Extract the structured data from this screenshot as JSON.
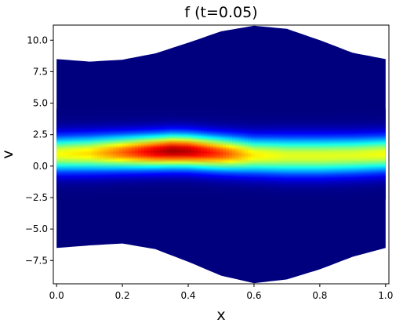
{
  "chart_data": {
    "type": "heatmap",
    "title": "f (t=0.05)",
    "xlabel": "x",
    "ylabel": "v",
    "xlim": [
      -0.01,
      1.01
    ],
    "ylim": [
      -9.35,
      11.2
    ],
    "x_ticks": [
      0.0,
      0.2,
      0.4,
      0.6,
      0.8,
      1.0
    ],
    "x_tick_labels": [
      "0.0",
      "0.2",
      "0.4",
      "0.6",
      "0.8",
      "1.0"
    ],
    "y_ticks": [
      -7.5,
      -5.0,
      -2.5,
      0.0,
      2.5,
      5.0,
      7.5,
      10.0
    ],
    "y_tick_labels": [
      "−7.5",
      "−5.0",
      "−2.5",
      "0.0",
      "2.5",
      "5.0",
      "7.5",
      "10.0"
    ],
    "colormap": "jet",
    "background_color": "#00007f",
    "grid": false,
    "domain_boundary": {
      "x": [
        0.0,
        0.1,
        0.2,
        0.3,
        0.4,
        0.5,
        0.6,
        0.7,
        0.8,
        0.9,
        1.0
      ],
      "upper": [
        8.5,
        8.3,
        8.45,
        8.95,
        9.8,
        10.7,
        11.15,
        10.9,
        10.0,
        9.0,
        8.5
      ],
      "lower": [
        -6.5,
        -6.3,
        -6.15,
        -6.6,
        -7.6,
        -8.7,
        -9.3,
        -9.0,
        -8.2,
        -7.2,
        -6.5
      ]
    },
    "density_band": {
      "x": [
        0.0,
        0.1,
        0.2,
        0.3,
        0.35,
        0.4,
        0.5,
        0.6,
        0.7,
        0.8,
        0.9,
        1.0
      ],
      "center_v": [
        0.95,
        1.0,
        1.08,
        1.15,
        1.2,
        1.18,
        1.0,
        0.85,
        0.8,
        0.8,
        0.85,
        0.95
      ],
      "peak": [
        0.62,
        0.66,
        0.78,
        0.92,
        0.97,
        0.95,
        0.82,
        0.64,
        0.6,
        0.6,
        0.6,
        0.62
      ],
      "width_v": [
        0.95,
        0.95,
        0.92,
        0.9,
        0.9,
        0.9,
        0.92,
        0.95,
        1.0,
        1.0,
        0.98,
        0.95
      ]
    }
  }
}
